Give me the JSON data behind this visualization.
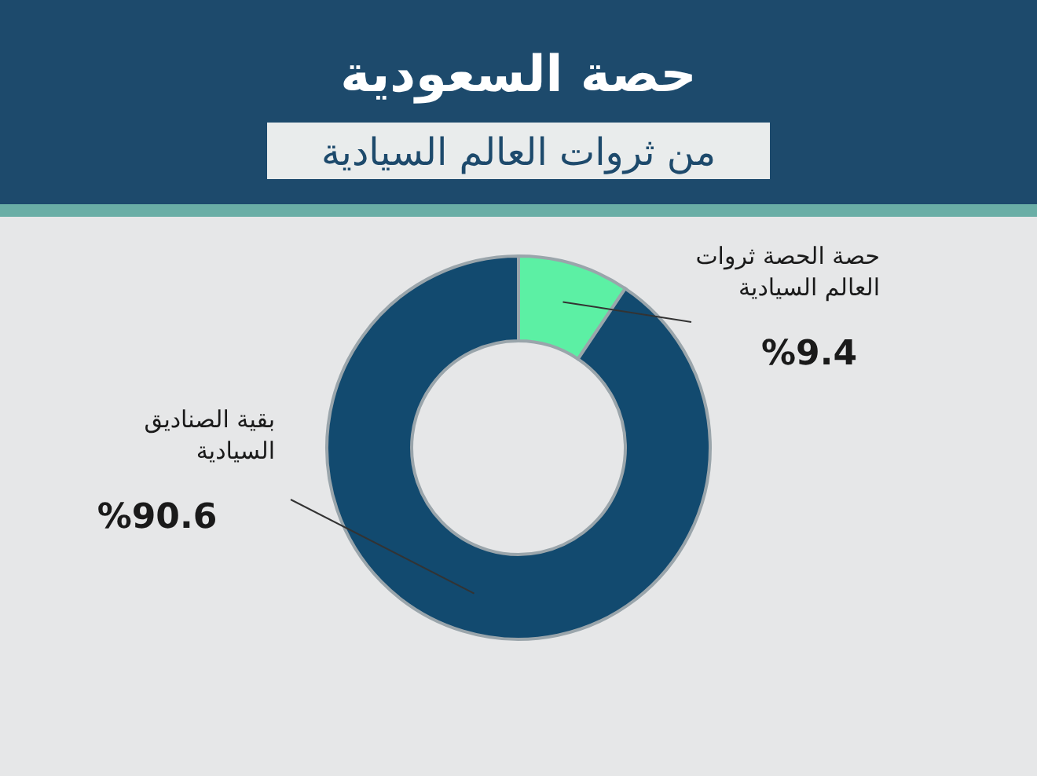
{
  "chart_data": {
    "type": "donut",
    "title": "حصة السعودية",
    "subtitle": "من ثروات العالم السيادية",
    "categories": [
      "حصة الحصة ثروات العالم السيادية",
      "بقية الصناديق السيادية"
    ],
    "values": [
      9.4,
      90.6
    ],
    "colors": [
      "#5cf0a4",
      "#124a6f"
    ],
    "value_labels": [
      "%9.4",
      "%90.6"
    ]
  }
}
